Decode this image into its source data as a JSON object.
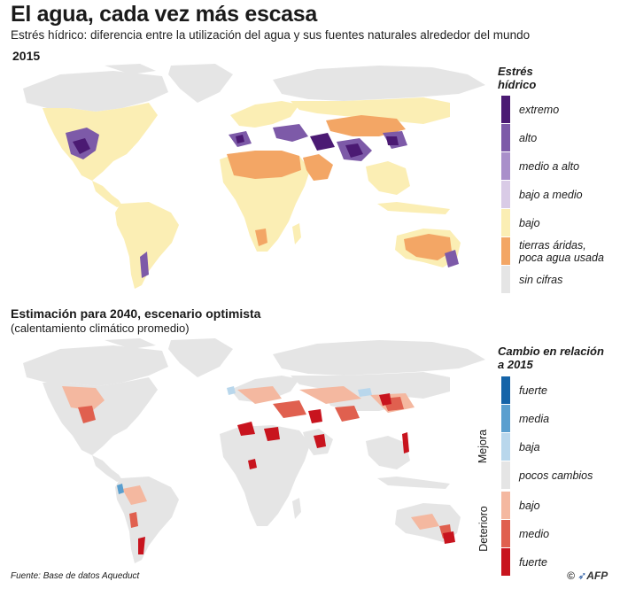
{
  "header": {
    "title": "El agua, cada vez más escasa",
    "subtitle": "Estrés hídrico: diferencia entre la utilización del agua y sus fuentes naturales alrededor del mundo"
  },
  "map2015": {
    "year_label": "2015",
    "legend": {
      "title_line1": "Estrés",
      "title_line2": "hídrico",
      "items": [
        {
          "label": "extremo",
          "color": "#4b1a73"
        },
        {
          "label": "alto",
          "color": "#7d5aa8"
        },
        {
          "label": "medio a alto",
          "color": "#a98fca"
        },
        {
          "label": "bajo a medio",
          "color": "#d9cbe6"
        },
        {
          "label": "bajo",
          "color": "#fbeeb4"
        },
        {
          "label": "tierras áridas,",
          "label2": "poca agua usada",
          "color": "#f3a665"
        },
        {
          "label": "sin cifras",
          "color": "#e5e5e5"
        }
      ]
    }
  },
  "map2040": {
    "title": "Estimación para 2040, escenario optimista",
    "subtitle": "(calentamiento climático promedio)",
    "legend": {
      "title_line1": "Cambio en relación",
      "title_line2": "a 2015",
      "group_better": "Mejora",
      "group_worse": "Deterioro",
      "items": [
        {
          "label": "fuerte",
          "color": "#1564a8"
        },
        {
          "label": "media",
          "color": "#5a9fcf"
        },
        {
          "label": "baja",
          "color": "#b9d7ec"
        },
        {
          "label": "pocos cambios",
          "color": "#e5e5e5"
        },
        {
          "label": "bajo",
          "color": "#f4b8a0"
        },
        {
          "label": "medio",
          "color": "#e0604f"
        },
        {
          "label": "fuerte",
          "color": "#c8141e"
        }
      ]
    }
  },
  "footer": {
    "source": "Fuente: Base de datos Aqueduct",
    "credit_symbol": "©",
    "credit": "AFP"
  }
}
